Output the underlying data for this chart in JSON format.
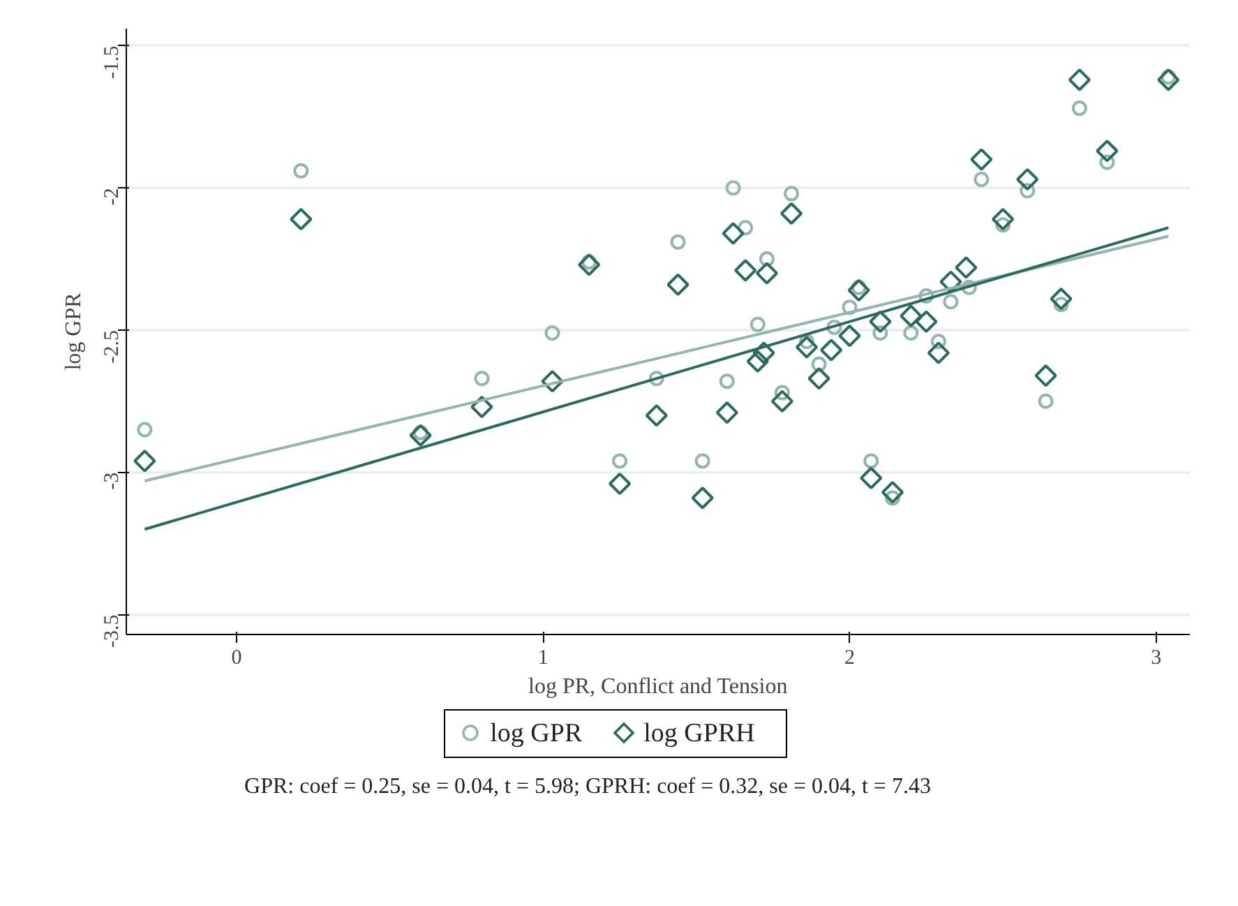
{
  "chart_data": {
    "type": "scatter",
    "xlabel": "log PR, Conflict and Tension",
    "ylabel": "log GPR",
    "xlim": [
      -0.36,
      3.11
    ],
    "ylim": [
      -3.57,
      -1.44
    ],
    "xticks": [
      0,
      1,
      2,
      3
    ],
    "yticks": [
      -3.5,
      -3,
      -2.5,
      -2,
      -1.5
    ],
    "grid": "y",
    "legend": "bottom",
    "annotations": [
      "GPR: coef = 0.25, se = 0.04, t = 5.98; GPRH: coef = 0.32, se = 0.04, t = 7.43"
    ],
    "series": [
      {
        "name": "log GPR",
        "type": "scatter",
        "marker": "circle",
        "color": "#93b5ad",
        "x": [
          -0.3,
          0.21,
          0.6,
          0.8,
          1.03,
          1.15,
          1.25,
          1.37,
          1.44,
          1.52,
          1.6,
          1.62,
          1.66,
          1.7,
          1.73,
          1.78,
          1.81,
          1.86,
          1.9,
          1.95,
          2.0,
          2.03,
          2.07,
          2.1,
          2.14,
          2.2,
          2.25,
          2.29,
          2.33,
          2.39,
          2.43,
          2.5,
          2.58,
          2.64,
          2.69,
          2.75,
          2.84,
          3.04
        ],
        "values": [
          -2.85,
          -1.94,
          -2.86,
          -2.67,
          -2.51,
          -2.26,
          -2.96,
          -2.67,
          -2.19,
          -2.96,
          -2.68,
          -2.0,
          -2.14,
          -2.48,
          -2.25,
          -2.72,
          -2.02,
          -2.54,
          -2.62,
          -2.49,
          -2.42,
          -2.35,
          -2.96,
          -2.51,
          -3.09,
          -2.51,
          -2.38,
          -2.54,
          -2.4,
          -2.35,
          -1.97,
          -2.13,
          -2.01,
          -2.75,
          -2.41,
          -1.72,
          -1.91,
          -1.61
        ]
      },
      {
        "name": "log GPRH",
        "type": "scatter",
        "marker": "diamond",
        "color": "#2a6b5f",
        "x": [
          -0.3,
          0.21,
          0.6,
          0.8,
          1.03,
          1.15,
          1.25,
          1.37,
          1.44,
          1.52,
          1.6,
          1.62,
          1.66,
          1.7,
          1.72,
          1.73,
          1.78,
          1.81,
          1.86,
          1.9,
          1.94,
          2.0,
          2.03,
          2.07,
          2.1,
          2.14,
          2.2,
          2.25,
          2.29,
          2.33,
          2.38,
          2.43,
          2.5,
          2.58,
          2.64,
          2.69,
          2.75,
          2.84,
          3.04
        ],
        "values": [
          -2.96,
          -2.11,
          -2.87,
          -2.77,
          -2.68,
          -2.27,
          -3.04,
          -2.8,
          -2.34,
          -3.09,
          -2.79,
          -2.16,
          -2.29,
          -2.61,
          -2.58,
          -2.3,
          -2.75,
          -2.09,
          -2.56,
          -2.67,
          -2.57,
          -2.52,
          -2.36,
          -3.02,
          -2.47,
          -3.07,
          -2.45,
          -2.47,
          -2.58,
          -2.33,
          -2.28,
          -1.9,
          -2.11,
          -1.97,
          -2.66,
          -2.39,
          -1.62,
          -1.87,
          -1.62
        ]
      },
      {
        "type": "line",
        "color": "#93b5ad",
        "x": [
          -0.3,
          3.04
        ],
        "values": [
          -3.03,
          -2.17
        ]
      },
      {
        "type": "line",
        "color": "#2a6b5f",
        "x": [
          -0.3,
          3.04
        ],
        "values": [
          -3.2,
          -2.14
        ]
      }
    ]
  }
}
